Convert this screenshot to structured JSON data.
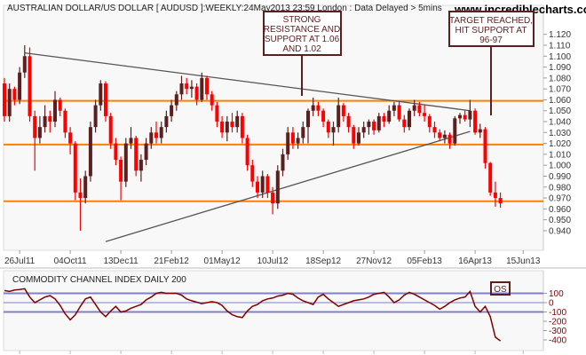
{
  "header": {
    "title": "AUSTRALIAN DOLLAR/US DOLLAR [ AUDUSD ]:WEEKLY:24May2013 23:59 London : Data Delayed > 5mins",
    "watermark": "www.incrediblecharts.com"
  },
  "colors": {
    "up_candle": "#5c1f1f",
    "down_candle": "#ff0000",
    "support_line": "#ff8000",
    "trend_line": "#555555",
    "cci_line": "#800000",
    "cci_levels": "#8080c8",
    "annotation": "#5c1f1f",
    "panel_bg": "#f8f8f8"
  },
  "annotations": [
    {
      "text": [
        "STRONG",
        "RESISTANCE AND",
        "SUPPORT AT 1.06",
        "AND 1.02"
      ]
    },
    {
      "text": [
        "TARGET REACHED,",
        "HIT SUPPORT AT",
        "96-97"
      ]
    }
  ],
  "chart_data": [
    {
      "type": "candlestick",
      "interval": "weekly",
      "first_week": "2011-07-08",
      "last_week": "2013-05-24",
      "ylim": [
        0.935,
        1.125
      ],
      "y_ticks": [
        "1.120",
        "1.110",
        "1.100",
        "1.090",
        "1.080",
        "1.070",
        "1.060",
        "1.050",
        "1.040",
        "1.030",
        "1.020",
        "1.010",
        "1.000",
        "0.990",
        "0.980",
        "0.970",
        "0.960",
        "0.950",
        "0.940"
      ],
      "x_ticks": [
        "26Jul11",
        "04Oct11",
        "13Dec11",
        "21Feb12",
        "01May12",
        "10Jul12",
        "18Sep12",
        "27Nov12",
        "05Feb13",
        "16Apr13",
        "15Jun13"
      ],
      "ohlc": [
        [
          1.075,
          1.08,
          1.04,
          1.045
        ],
        [
          1.045,
          1.075,
          1.04,
          1.07
        ],
        [
          1.07,
          1.072,
          1.055,
          1.06
        ],
        [
          1.06,
          1.09,
          1.056,
          1.085
        ],
        [
          1.085,
          1.11,
          1.08,
          1.1
        ],
        [
          1.1,
          1.108,
          1.04,
          1.045
        ],
        [
          1.045,
          1.05,
          0.995,
          1.025
        ],
        [
          1.025,
          1.045,
          1.02,
          1.035
        ],
        [
          1.035,
          1.055,
          1.03,
          1.045
        ],
        [
          1.045,
          1.05,
          1.03,
          1.04
        ],
        [
          1.04,
          1.068,
          1.035,
          1.06
        ],
        [
          1.06,
          1.062,
          1.045,
          1.05
        ],
        [
          1.05,
          1.052,
          1.025,
          1.03
        ],
        [
          1.03,
          1.035,
          1.01,
          1.02
        ],
        [
          1.02,
          1.022,
          0.968,
          0.975
        ],
        [
          0.975,
          0.988,
          0.94,
          0.97
        ],
        [
          0.97,
          0.995,
          0.965,
          0.99
        ],
        [
          0.99,
          1.04,
          0.985,
          1.035
        ],
        [
          1.035,
          1.06,
          1.03,
          1.055
        ],
        [
          1.055,
          1.078,
          1.05,
          1.075
        ],
        [
          1.075,
          1.077,
          1.04,
          1.045
        ],
        [
          1.045,
          1.048,
          1.015,
          1.02
        ],
        [
          1.02,
          1.025,
          1.0,
          1.005
        ],
        [
          1.005,
          1.008,
          0.968,
          0.985
        ],
        [
          0.985,
          1.025,
          0.98,
          1.02
        ],
        [
          1.02,
          1.035,
          1.015,
          1.025
        ],
        [
          1.025,
          1.027,
          0.99,
          0.995
        ],
        [
          0.995,
          1.01,
          0.985,
          1.005
        ],
        [
          1.005,
          1.025,
          1.0,
          1.02
        ],
        [
          1.02,
          1.035,
          1.015,
          1.03
        ],
        [
          1.03,
          1.04,
          1.02,
          1.025
        ],
        [
          1.025,
          1.04,
          1.02,
          1.035
        ],
        [
          1.035,
          1.05,
          1.03,
          1.045
        ],
        [
          1.045,
          1.06,
          1.04,
          1.055
        ],
        [
          1.055,
          1.068,
          1.05,
          1.065
        ],
        [
          1.065,
          1.082,
          1.06,
          1.075
        ],
        [
          1.075,
          1.08,
          1.065,
          1.07
        ],
        [
          1.07,
          1.078,
          1.062,
          1.072
        ],
        [
          1.072,
          1.075,
          1.055,
          1.06
        ],
        [
          1.06,
          1.085,
          1.058,
          1.08
        ],
        [
          1.08,
          1.082,
          1.06,
          1.065
        ],
        [
          1.065,
          1.068,
          1.05,
          1.055
        ],
        [
          1.055,
          1.058,
          1.035,
          1.04
        ],
        [
          1.04,
          1.045,
          1.025,
          1.03
        ],
        [
          1.03,
          1.045,
          1.022,
          1.04
        ],
        [
          1.04,
          1.048,
          1.03,
          1.035
        ],
        [
          1.035,
          1.05,
          1.03,
          1.045
        ],
        [
          1.045,
          1.048,
          1.02,
          1.025
        ],
        [
          1.025,
          1.028,
          0.995,
          1.0
        ],
        [
          1.0,
          1.005,
          0.98,
          0.985
        ],
        [
          0.985,
          0.99,
          0.97,
          0.975
        ],
        [
          0.975,
          0.995,
          0.97,
          0.99
        ],
        [
          0.99,
          0.992,
          0.97,
          0.975
        ],
        [
          0.975,
          0.98,
          0.955,
          0.965
        ],
        [
          0.965,
          1.0,
          0.96,
          0.995
        ],
        [
          0.995,
          1.015,
          0.99,
          1.01
        ],
        [
          1.01,
          1.035,
          1.005,
          1.03
        ],
        [
          1.03,
          1.035,
          1.015,
          1.02
        ],
        [
          1.02,
          1.03,
          1.015,
          1.025
        ],
        [
          1.025,
          1.04,
          1.02,
          1.035
        ],
        [
          1.035,
          1.052,
          1.02,
          1.05
        ],
        [
          1.05,
          1.062,
          1.045,
          1.055
        ],
        [
          1.055,
          1.058,
          1.045,
          1.05
        ],
        [
          1.05,
          1.052,
          1.035,
          1.04
        ],
        [
          1.04,
          1.042,
          1.025,
          1.03
        ],
        [
          1.03,
          1.04,
          1.018,
          1.035
        ],
        [
          1.035,
          1.062,
          1.03,
          1.055
        ],
        [
          1.055,
          1.057,
          1.04,
          1.045
        ],
        [
          1.045,
          1.048,
          1.03,
          1.035
        ],
        [
          1.035,
          1.037,
          1.015,
          1.02
        ],
        [
          1.02,
          1.035,
          1.018,
          1.03
        ],
        [
          1.03,
          1.04,
          1.025,
          1.035
        ],
        [
          1.035,
          1.042,
          1.028,
          1.04
        ],
        [
          1.04,
          1.042,
          1.028,
          1.032
        ],
        [
          1.032,
          1.048,
          1.03,
          1.045
        ],
        [
          1.045,
          1.048,
          1.035,
          1.04
        ],
        [
          1.04,
          1.055,
          1.038,
          1.05
        ],
        [
          1.05,
          1.058,
          1.045,
          1.055
        ],
        [
          1.055,
          1.058,
          1.04,
          1.042
        ],
        [
          1.042,
          1.046,
          1.03,
          1.035
        ],
        [
          1.035,
          1.052,
          1.032,
          1.05
        ],
        [
          1.05,
          1.06,
          1.045,
          1.055
        ],
        [
          1.055,
          1.058,
          1.045,
          1.048
        ],
        [
          1.048,
          1.055,
          1.04,
          1.045
        ],
        [
          1.045,
          1.047,
          1.03,
          1.035
        ],
        [
          1.035,
          1.04,
          1.025,
          1.03
        ],
        [
          1.03,
          1.033,
          1.022,
          1.025
        ],
        [
          1.025,
          1.032,
          1.02,
          1.028
        ],
        [
          1.028,
          1.03,
          1.015,
          1.02
        ],
        [
          1.02,
          1.045,
          1.018,
          1.043
        ],
        [
          1.043,
          1.048,
          1.038,
          1.046
        ],
        [
          1.046,
          1.05,
          1.04,
          1.042
        ],
        [
          1.042,
          1.06,
          1.035,
          1.05
        ],
        [
          1.05,
          1.052,
          1.028,
          1.03
        ],
        [
          1.03,
          1.038,
          1.025,
          1.033
        ],
        [
          1.033,
          1.035,
          0.997,
          1.002
        ],
        [
          1.002,
          1.003,
          0.972,
          0.975
        ],
        [
          0.975,
          0.985,
          0.962,
          0.97
        ],
        [
          0.97,
          0.975,
          0.961,
          0.965
        ]
      ],
      "support_levels": [
        1.059,
        1.019,
        0.967
      ],
      "trend_lines": [
        {
          "start": [
            "2011-08-05",
            1.103
          ],
          "end": [
            "2013-04-12",
            1.05
          ]
        },
        {
          "start": [
            "2011-11-25",
            0.93
          ],
          "end": [
            "2013-04-12",
            1.031
          ]
        }
      ]
    },
    {
      "type": "line",
      "title": "COMMODITY CHANNEL INDEX DAILY 200",
      "ylim": [
        -450,
        180
      ],
      "y_ticks": [
        "100",
        "0",
        "-100",
        "-200",
        "-300",
        "-400"
      ],
      "levels": [
        100,
        0,
        -100
      ],
      "badge": "OS",
      "values": [
        130,
        120,
        135,
        140,
        150,
        60,
        0,
        30,
        60,
        75,
        40,
        -30,
        -120,
        -185,
        -130,
        -40,
        40,
        60,
        -20,
        -100,
        -150,
        -90,
        -40,
        -100,
        -90,
        -60,
        -40,
        -20,
        30,
        60,
        100,
        110,
        100,
        100,
        100,
        80,
        40,
        20,
        5,
        -10,
        0,
        10,
        0,
        -30,
        -90,
        -130,
        -150,
        -160,
        -90,
        -40,
        -20,
        20,
        40,
        50,
        70,
        80,
        100,
        90,
        50,
        20,
        0,
        -20,
        60,
        90,
        40,
        0,
        -40,
        -20,
        0,
        20,
        30,
        40,
        60,
        90,
        100,
        110,
        60,
        0,
        30,
        80,
        110,
        90,
        60,
        30,
        0,
        -30,
        -70,
        -40,
        0,
        30,
        50,
        60,
        120,
        -40,
        -100,
        -40,
        -150,
        -370,
        -410
      ]
    }
  ]
}
